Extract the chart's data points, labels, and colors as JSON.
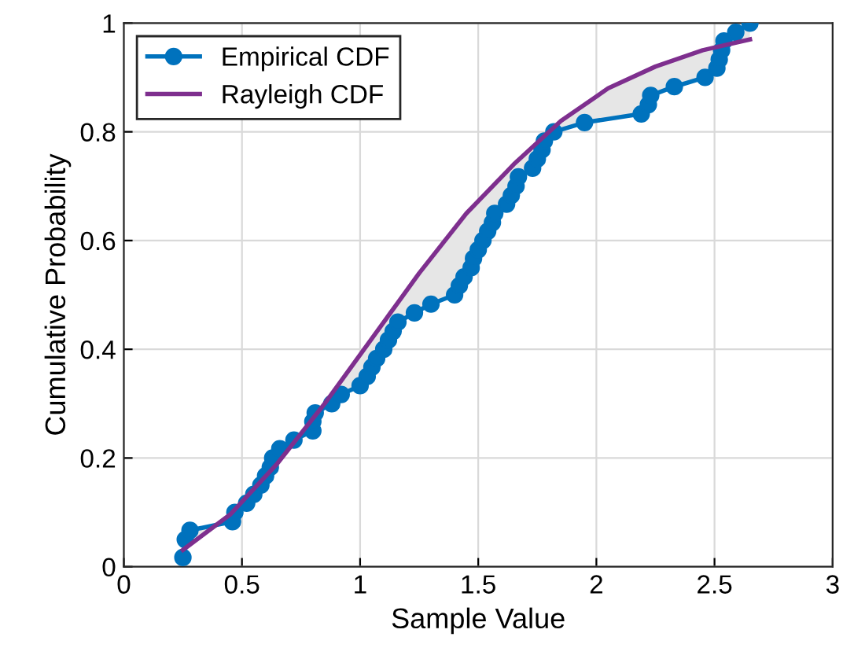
{
  "chart_data": {
    "type": "line",
    "xlabel": "Sample Value",
    "ylabel": "Cumulative Probability",
    "xlim": [
      0,
      3
    ],
    "xticks": [
      0,
      0.5,
      1,
      1.5,
      2,
      2.5,
      3
    ],
    "ylim": [
      0,
      1
    ],
    "yticks": [
      0,
      0.2,
      0.4,
      0.6,
      0.8,
      1
    ],
    "grid": true,
    "legend": "top left",
    "series": [
      {
        "name": "Empirical CDF",
        "color": "#0072bd",
        "marker": "circle",
        "x": [
          0.25,
          0.26,
          0.28,
          0.46,
          0.47,
          0.52,
          0.55,
          0.58,
          0.6,
          0.62,
          0.63,
          0.66,
          0.72,
          0.8,
          0.8,
          0.81,
          0.88,
          0.92,
          1.0,
          1.03,
          1.05,
          1.07,
          1.1,
          1.12,
          1.14,
          1.16,
          1.23,
          1.3,
          1.4,
          1.42,
          1.44,
          1.47,
          1.48,
          1.5,
          1.52,
          1.54,
          1.56,
          1.57,
          1.62,
          1.64,
          1.66,
          1.67,
          1.73,
          1.75,
          1.77,
          1.78,
          1.82,
          1.95,
          2.19,
          2.22,
          2.23,
          2.33,
          2.46,
          2.51,
          2.52,
          2.53,
          2.54,
          2.59,
          2.65
        ],
        "values": [
          0.017,
          0.05,
          0.067,
          0.083,
          0.1,
          0.117,
          0.133,
          0.15,
          0.167,
          0.183,
          0.2,
          0.217,
          0.233,
          0.25,
          0.267,
          0.283,
          0.3,
          0.317,
          0.333,
          0.35,
          0.367,
          0.383,
          0.4,
          0.417,
          0.433,
          0.45,
          0.467,
          0.483,
          0.5,
          0.517,
          0.533,
          0.55,
          0.567,
          0.583,
          0.6,
          0.617,
          0.633,
          0.65,
          0.667,
          0.683,
          0.7,
          0.717,
          0.733,
          0.75,
          0.767,
          0.783,
          0.8,
          0.817,
          0.833,
          0.85,
          0.867,
          0.883,
          0.9,
          0.917,
          0.933,
          0.95,
          0.967,
          0.983,
          1.0
        ],
        "upper": [
          0.031,
          0.033,
          0.038,
          0.1,
          0.105,
          0.13,
          0.14,
          0.155,
          0.165,
          0.175,
          0.18,
          0.195,
          0.23,
          0.27,
          0.27,
          0.28,
          0.32,
          0.345,
          0.39,
          0.41,
          0.42,
          0.435,
          0.455,
          0.47,
          0.48,
          0.49,
          0.53,
          0.57,
          0.625,
          0.635,
          0.645,
          0.66,
          0.665,
          0.675,
          0.685,
          0.695,
          0.705,
          0.71,
          0.73,
          0.74,
          0.75,
          0.75,
          0.775,
          0.78,
          0.79,
          0.795,
          0.81,
          0.85,
          0.91,
          0.915,
          0.915,
          0.935,
          0.95,
          0.96,
          0.96,
          0.96,
          0.96,
          0.965,
          0.97
        ],
        "lower": [
          0.017,
          0.05,
          0.067,
          0.083,
          0.1,
          0.117,
          0.133,
          0.15,
          0.167,
          0.183,
          0.2,
          0.217,
          0.233,
          0.25,
          0.267,
          0.283,
          0.3,
          0.317,
          0.333,
          0.35,
          0.367,
          0.383,
          0.4,
          0.417,
          0.433,
          0.45,
          0.467,
          0.483,
          0.5,
          0.517,
          0.533,
          0.55,
          0.567,
          0.583,
          0.6,
          0.617,
          0.633,
          0.65,
          0.667,
          0.683,
          0.7,
          0.717,
          0.733,
          0.75,
          0.767,
          0.783,
          0.8,
          0.817,
          0.833,
          0.85,
          0.867,
          0.883,
          0.9,
          0.917,
          0.933,
          0.95,
          0.967,
          0.983,
          1.0
        ]
      },
      {
        "name": "Rayleigh CDF",
        "color": "#7e2f8e",
        "marker": "none",
        "x": [
          0.25,
          0.45,
          0.65,
          0.85,
          1.05,
          1.25,
          1.45,
          1.65,
          1.85,
          2.05,
          2.25,
          2.45,
          2.65
        ],
        "values": [
          0.031,
          0.096,
          0.19,
          0.3,
          0.42,
          0.54,
          0.65,
          0.74,
          0.82,
          0.88,
          0.92,
          0.95,
          0.97
        ]
      }
    ]
  }
}
